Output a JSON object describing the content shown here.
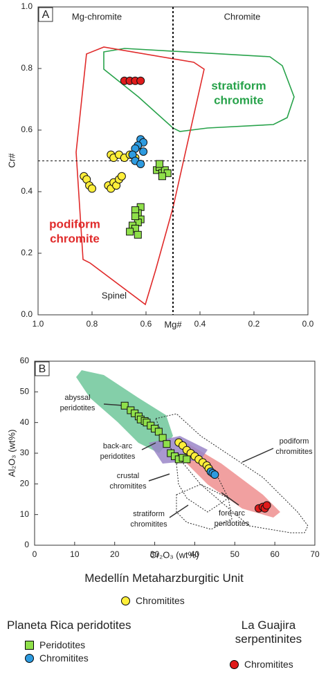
{
  "chart_data": [
    {
      "type": "scatter",
      "panel_label": "A",
      "xlabel": "Mg#",
      "ylabel": "Cr#",
      "xlim": [
        1,
        0
      ],
      "ylim": [
        0,
        1
      ],
      "xticks": [
        {
          "value": 1,
          "label": "1.0"
        },
        0.8,
        0.6,
        0.4,
        0.2,
        {
          "value": 0,
          "label": "0.0"
        }
      ],
      "yticks": [
        {
          "value": 0,
          "label": "0.0"
        },
        0.2,
        0.4,
        0.6,
        0.8,
        {
          "value": 1,
          "label": "1.0"
        }
      ],
      "vlines": [
        0.5
      ],
      "hlines": [
        0.5
      ],
      "annotations": [
        [
          "Mg-chromite"
        ],
        [
          "Chromite"
        ],
        [
          "Spinel"
        ],
        [
          "podiform",
          "chromite"
        ],
        [
          "stratiform",
          "chromite"
        ]
      ],
      "series": [
        {
          "name": "Chromitites",
          "group": "Medellín Metaharzburgitic Unit",
          "color": "#ffef3a",
          "marker": "circle",
          "x": [
            0.83,
            0.82,
            0.81,
            0.8,
            0.74,
            0.73,
            0.72,
            0.71,
            0.7,
            0.69,
            0.73,
            0.72,
            0.7,
            0.68,
            0.66,
            0.64
          ],
          "y": [
            0.45,
            0.44,
            0.42,
            0.41,
            0.42,
            0.41,
            0.43,
            0.42,
            0.44,
            0.45,
            0.52,
            0.51,
            0.52,
            0.51,
            0.52,
            0.51
          ]
        },
        {
          "name": "Peridotites",
          "group": "Planeta Rica peridotites",
          "color": "#8fe04a",
          "marker": "square",
          "x": [
            0.56,
            0.55,
            0.54,
            0.53,
            0.52,
            0.55,
            0.54,
            0.62,
            0.63,
            0.64,
            0.62,
            0.63,
            0.65,
            0.64,
            0.66,
            0.63,
            0.64
          ],
          "y": [
            0.47,
            0.48,
            0.46,
            0.47,
            0.46,
            0.49,
            0.45,
            0.35,
            0.33,
            0.34,
            0.31,
            0.3,
            0.29,
            0.28,
            0.27,
            0.26,
            0.32
          ]
        },
        {
          "name": "Chromitites",
          "group": "Planeta Rica peridotites",
          "color": "#2e9be0",
          "marker": "circle",
          "x": [
            0.62,
            0.61,
            0.63,
            0.64,
            0.65,
            0.64,
            0.62,
            0.61
          ],
          "y": [
            0.57,
            0.56,
            0.55,
            0.54,
            0.52,
            0.5,
            0.49,
            0.53
          ]
        },
        {
          "name": "Chromitites",
          "group": "La Guajira serpentinites",
          "color": "#e01b1b",
          "marker": "circle",
          "x": [
            0.68,
            0.66,
            0.64,
            0.62
          ],
          "y": [
            0.76,
            0.76,
            0.76,
            0.76
          ]
        }
      ]
    },
    {
      "type": "scatter",
      "panel_label": "B",
      "xlabel": "Cr₂O₃ (wt%)",
      "ylabel": "Al₂O₃ (wt%)",
      "xlim": [
        0,
        70
      ],
      "ylim": [
        0,
        60
      ],
      "xticks": [
        0,
        10,
        20,
        30,
        40,
        50,
        60,
        70
      ],
      "yticks": [
        0,
        10,
        20,
        30,
        40,
        50,
        60
      ],
      "annotations": [
        [
          "abyssal",
          "peridotites"
        ],
        [
          "back-arc",
          "peridotites"
        ],
        [
          "crustal",
          "chromitites"
        ],
        [
          "stratiform",
          "chromitites"
        ],
        [
          "fore-arc",
          "peridotites"
        ],
        [
          "podiform",
          "chromitites"
        ]
      ],
      "series": [
        {
          "name": "Chromitites",
          "color": "#ffef3a",
          "marker": "circle",
          "x": [
            36,
            37,
            38,
            39,
            40,
            41,
            42,
            43,
            43.5
          ],
          "y": [
            33.5,
            32.5,
            31,
            30,
            29,
            28,
            27,
            26,
            25
          ]
        },
        {
          "name": "Peridotites",
          "color": "#8fe04a",
          "marker": "square",
          "x": [
            22.5,
            24,
            25,
            26,
            26.5,
            27.5,
            28,
            29,
            30,
            31,
            32,
            33,
            34,
            35,
            36,
            37,
            38
          ],
          "y": [
            45.5,
            44,
            43,
            42,
            41,
            40.5,
            40,
            39,
            38,
            37,
            35,
            33,
            30,
            29,
            28,
            28.5,
            28
          ]
        },
        {
          "name": "Chromitites",
          "color": "#2e9be0",
          "marker": "circle",
          "x": [
            44,
            44.5,
            45
          ],
          "y": [
            24,
            23.5,
            23
          ]
        },
        {
          "name": "Chromitites",
          "color": "#e01b1b",
          "marker": "circle",
          "x": [
            56,
            57,
            57.5,
            58
          ],
          "y": [
            12,
            12.5,
            12,
            13
          ]
        }
      ]
    }
  ]
}
